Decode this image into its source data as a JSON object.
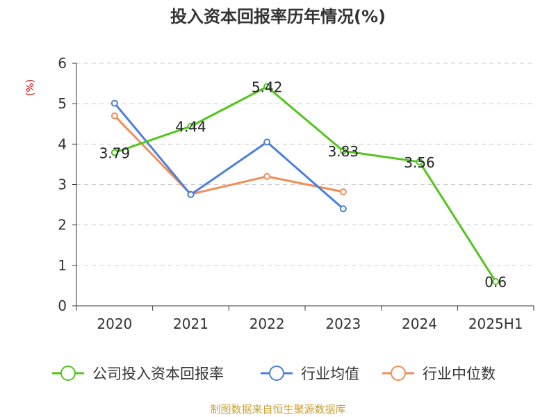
{
  "title": "投入资本回报率历年情况(%)",
  "source": "制图数据来自恒生聚源数据库",
  "colors": {
    "grid": "#cccccc",
    "axis": "#333333",
    "ylabel": "#cc0000"
  },
  "chart_data": {
    "type": "line",
    "title": "投入资本回报率历年情况(%)",
    "ylabel": "(%)",
    "xlabel": "",
    "categories": [
      "2020",
      "2021",
      "2022",
      "2023",
      "2024",
      "2025H1"
    ],
    "ylim": [
      0,
      6
    ],
    "yticks": [
      0,
      1,
      2,
      3,
      4,
      5,
      6
    ],
    "grid": true,
    "legend_position": "bottom",
    "series": [
      {
        "name": "公司投入资本回报率",
        "color": "#52c41a",
        "values": [
          3.79,
          4.44,
          5.42,
          3.83,
          3.56,
          0.6
        ],
        "data_labels": [
          "3.79",
          "4.44",
          "5.42",
          "3.83",
          "3.56",
          "0.6"
        ]
      },
      {
        "name": "行业均值",
        "color": "#4a7fdb",
        "values": [
          5.01,
          2.75,
          4.05,
          2.4,
          null,
          null
        ]
      },
      {
        "name": "行业中位数",
        "color": "#f28c55",
        "values": [
          4.7,
          2.76,
          3.2,
          2.82,
          null,
          null
        ]
      }
    ]
  }
}
